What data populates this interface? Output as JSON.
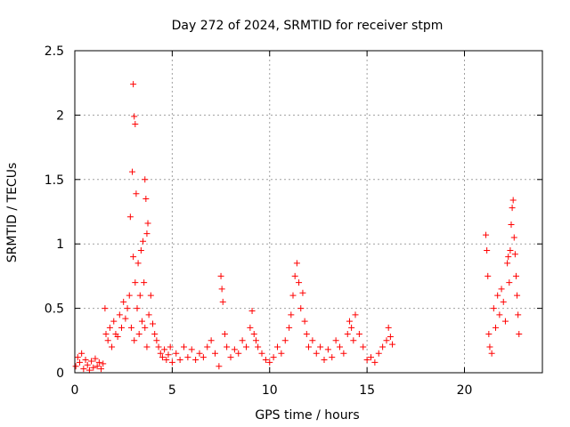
{
  "chart_data": {
    "type": "scatter",
    "title": "Day 272 of 2024, SRMTID for receiver stpm",
    "xlabel": "GPS time / hours",
    "ylabel": "SRMTID / TECUs",
    "xlim": [
      0,
      24
    ],
    "ylim": [
      0,
      2.5
    ],
    "xticks": [
      0,
      5,
      10,
      15,
      20
    ],
    "xtick_labels": [
      "0",
      "5",
      "10",
      "15",
      "20"
    ],
    "yticks": [
      0,
      0.5,
      1,
      1.5,
      2,
      2.5
    ],
    "ytick_labels": [
      "0",
      "0.5",
      "1",
      "1.5",
      "2",
      "2.5"
    ],
    "grid": true,
    "marker": "+",
    "color": "#ff0000",
    "series": [
      {
        "name": "SRMTID",
        "x": [
          0.05,
          0.15,
          0.25,
          0.35,
          0.45,
          0.55,
          0.65,
          0.75,
          0.85,
          0.95,
          1.05,
          1.15,
          1.25,
          1.35,
          1.45,
          1.55,
          1.6,
          1.7,
          1.8,
          1.9,
          2.0,
          2.1,
          2.2,
          2.3,
          2.4,
          2.5,
          2.6,
          2.7,
          2.8,
          2.85,
          2.9,
          2.95,
          3.0,
          3.0,
          3.05,
          3.05,
          3.1,
          3.1,
          3.15,
          3.2,
          3.25,
          3.3,
          3.35,
          3.4,
          3.45,
          3.5,
          3.55,
          3.6,
          3.6,
          3.65,
          3.7,
          3.7,
          3.75,
          3.8,
          3.9,
          4.0,
          4.1,
          4.2,
          4.3,
          4.4,
          4.5,
          4.6,
          4.7,
          4.8,
          4.9,
          5.0,
          5.2,
          5.4,
          5.6,
          5.8,
          6.0,
          6.2,
          6.4,
          6.6,
          6.8,
          7.0,
          7.2,
          7.4,
          7.5,
          7.55,
          7.6,
          7.7,
          7.8,
          8.0,
          8.2,
          8.4,
          8.6,
          8.8,
          9.0,
          9.1,
          9.2,
          9.3,
          9.4,
          9.6,
          9.8,
          10.0,
          10.2,
          10.4,
          10.6,
          10.8,
          11.0,
          11.1,
          11.2,
          11.3,
          11.4,
          11.5,
          11.6,
          11.7,
          11.8,
          11.9,
          12.0,
          12.2,
          12.4,
          12.6,
          12.8,
          13.0,
          13.2,
          13.4,
          13.6,
          13.8,
          14.0,
          14.1,
          14.2,
          14.3,
          14.4,
          14.6,
          14.8,
          15.0,
          15.2,
          15.4,
          15.6,
          15.8,
          16.0,
          16.1,
          16.2,
          16.3,
          21.1,
          21.15,
          21.2,
          21.25,
          21.3,
          21.4,
          21.5,
          21.6,
          21.7,
          21.8,
          21.9,
          22.0,
          22.1,
          22.2,
          22.25,
          22.3,
          22.35,
          22.4,
          22.45,
          22.5,
          22.55,
          22.6,
          22.65,
          22.7,
          22.75,
          22.8
        ],
        "y": [
          0.05,
          0.12,
          0.08,
          0.15,
          0.03,
          0.1,
          0.06,
          0.02,
          0.09,
          0.04,
          0.11,
          0.05,
          0.08,
          0.03,
          0.07,
          0.5,
          0.3,
          0.25,
          0.35,
          0.2,
          0.4,
          0.3,
          0.28,
          0.45,
          0.35,
          0.55,
          0.42,
          0.5,
          0.6,
          1.21,
          0.35,
          1.56,
          2.24,
          0.9,
          1.99,
          0.25,
          1.93,
          0.7,
          1.39,
          0.5,
          0.85,
          0.3,
          0.6,
          0.95,
          0.4,
          1.02,
          0.7,
          1.5,
          0.35,
          1.35,
          1.08,
          0.2,
          1.16,
          0.45,
          0.6,
          0.38,
          0.3,
          0.25,
          0.2,
          0.15,
          0.12,
          0.18,
          0.1,
          0.14,
          0.2,
          0.08,
          0.15,
          0.1,
          0.2,
          0.12,
          0.18,
          0.1,
          0.15,
          0.12,
          0.2,
          0.25,
          0.15,
          0.05,
          0.75,
          0.65,
          0.55,
          0.3,
          0.2,
          0.12,
          0.18,
          0.15,
          0.25,
          0.2,
          0.35,
          0.48,
          0.3,
          0.25,
          0.2,
          0.15,
          0.1,
          0.08,
          0.12,
          0.2,
          0.15,
          0.25,
          0.35,
          0.45,
          0.6,
          0.75,
          0.85,
          0.7,
          0.5,
          0.62,
          0.4,
          0.3,
          0.2,
          0.25,
          0.15,
          0.2,
          0.1,
          0.18,
          0.12,
          0.25,
          0.2,
          0.15,
          0.3,
          0.4,
          0.35,
          0.25,
          0.45,
          0.3,
          0.2,
          0.1,
          0.12,
          0.08,
          0.15,
          0.2,
          0.25,
          0.35,
          0.28,
          0.22,
          1.07,
          0.95,
          0.75,
          0.3,
          0.2,
          0.15,
          0.5,
          0.35,
          0.6,
          0.45,
          0.65,
          0.55,
          0.4,
          0.85,
          0.9,
          0.7,
          0.95,
          1.15,
          1.28,
          1.34,
          1.05,
          0.92,
          0.75,
          0.6,
          0.45,
          0.3
        ]
      }
    ]
  }
}
